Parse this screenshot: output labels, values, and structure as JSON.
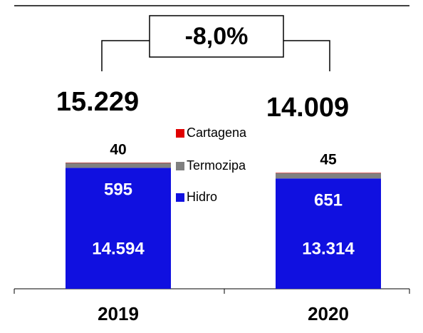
{
  "chart_data": {
    "type": "stacked_bar",
    "annotation": "-8,0%",
    "categories": [
      "2019",
      "2020"
    ],
    "series": [
      {
        "name": "Hidro",
        "color": "#1010e0",
        "values": [
          14594,
          13314
        ],
        "value_labels": [
          "14.594",
          "13.314"
        ]
      },
      {
        "name": "Termozipa",
        "color": "#808080",
        "values": [
          595,
          651
        ],
        "value_labels": [
          "595",
          "651"
        ]
      },
      {
        "name": "Cartagena",
        "color": "#e00000",
        "values": [
          40,
          45
        ],
        "value_labels": [
          "40",
          "45"
        ]
      }
    ],
    "totals": [
      {
        "value": 15229,
        "label": "15.229"
      },
      {
        "value": 14009,
        "label": "14.009"
      }
    ]
  }
}
